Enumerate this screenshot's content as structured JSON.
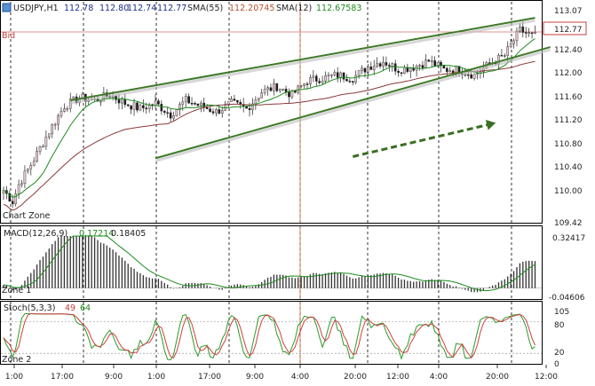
{
  "header": {
    "symbol": "USDJPY,H1",
    "ohlc": [
      "112.78",
      "112.80",
      "112.74",
      "112.77"
    ],
    "sma55_label": "SMA(55)",
    "sma55_value": "112.20745",
    "sma12_label": "SMA(12)",
    "sma12_value": "112.67583"
  },
  "price_panel": {
    "bid_label": "Bid",
    "bid_price": "112.77",
    "zone_label": "Chart Zone",
    "y_ticks": [
      "113.07",
      "112.80",
      "112.40",
      "112.00",
      "111.60",
      "111.20",
      "110.80",
      "110.40",
      "110.00",
      "109.42"
    ],
    "ylim": [
      109.42,
      113.07
    ]
  },
  "macd_panel": {
    "label": "MACD(12,26,9)",
    "value1": "0.17214",
    "value2": "0.18405",
    "zone_label": "Zone 1",
    "y_max_label": "0.32417",
    "y_min_label": "-0.04606",
    "ylim": [
      -0.04606,
      0.32417
    ]
  },
  "stoch_panel": {
    "label": "Stoch(5,3,3)",
    "value1": "49",
    "value2": "64",
    "zone_label": "Zone 2",
    "y_ticks": [
      "105",
      "80",
      "20",
      "0"
    ],
    "ylim": [
      0,
      105
    ]
  },
  "x_axis": {
    "ticks": [
      "1:00",
      "17:00",
      "9:00",
      "1:00",
      "17:00",
      "9:00",
      "4:00",
      "20:00",
      "12:00",
      "4:00",
      "20:00",
      "12:00"
    ]
  },
  "colors": {
    "candle_bull": "#e8c8cc",
    "candle_bear": "#1a1a1a",
    "sma_fast": "#1f8c1f",
    "sma_slow": "#8b3a3a",
    "channel": "#3e7a28",
    "bid_line": "#d07070",
    "stoch_main": "#2b9a2b",
    "stoch_signal": "#d04040"
  },
  "chart_data": {
    "type": "candlestick",
    "symbol": "USDJPY",
    "timeframe": "H1",
    "ylim": [
      109.42,
      113.07
    ],
    "bid": 112.77,
    "anchors": [
      [
        0,
        109.95
      ],
      [
        3,
        109.75
      ],
      [
        5,
        110.05
      ],
      [
        10,
        110.5
      ],
      [
        15,
        111.0
      ],
      [
        20,
        111.45
      ],
      [
        25,
        111.6
      ],
      [
        30,
        111.55
      ],
      [
        35,
        111.65
      ],
      [
        40,
        111.5
      ],
      [
        45,
        111.4
      ],
      [
        50,
        111.5
      ],
      [
        55,
        111.3
      ],
      [
        60,
        111.55
      ],
      [
        65,
        111.45
      ],
      [
        70,
        111.35
      ],
      [
        75,
        111.5
      ],
      [
        80,
        111.4
      ],
      [
        85,
        111.7
      ],
      [
        90,
        111.8
      ],
      [
        95,
        111.65
      ],
      [
        100,
        111.9
      ],
      [
        105,
        111.95
      ],
      [
        110,
        112.0
      ],
      [
        115,
        111.95
      ],
      [
        120,
        112.15
      ],
      [
        125,
        112.25
      ],
      [
        130,
        112.1
      ],
      [
        135,
        112.15
      ],
      [
        140,
        112.25
      ],
      [
        145,
        112.1
      ],
      [
        150,
        112.1
      ],
      [
        155,
        112.0
      ],
      [
        160,
        112.2
      ],
      [
        165,
        112.35
      ],
      [
        170,
        112.8
      ],
      [
        174,
        112.7
      ]
    ],
    "channel_lines": [
      {
        "name": "upper",
        "points": [
          [
            22,
            111.55
          ],
          [
            175,
            113.02
          ]
        ]
      },
      {
        "name": "lower",
        "points": [
          [
            50,
            110.52
          ],
          [
            180,
            112.5
          ]
        ]
      }
    ],
    "trend_arrow": {
      "from": [
        115,
        110.55
      ],
      "to": [
        162,
        111.15
      ]
    },
    "macd": {
      "ylim": [
        -0.04606,
        0.32417
      ],
      "last_hist": 0.17214,
      "last_signal": 0.18405
    },
    "stoch": {
      "ylim": [
        0,
        105
      ],
      "levels": [
        80,
        20
      ],
      "last_main": 49,
      "last_signal": 64
    }
  }
}
